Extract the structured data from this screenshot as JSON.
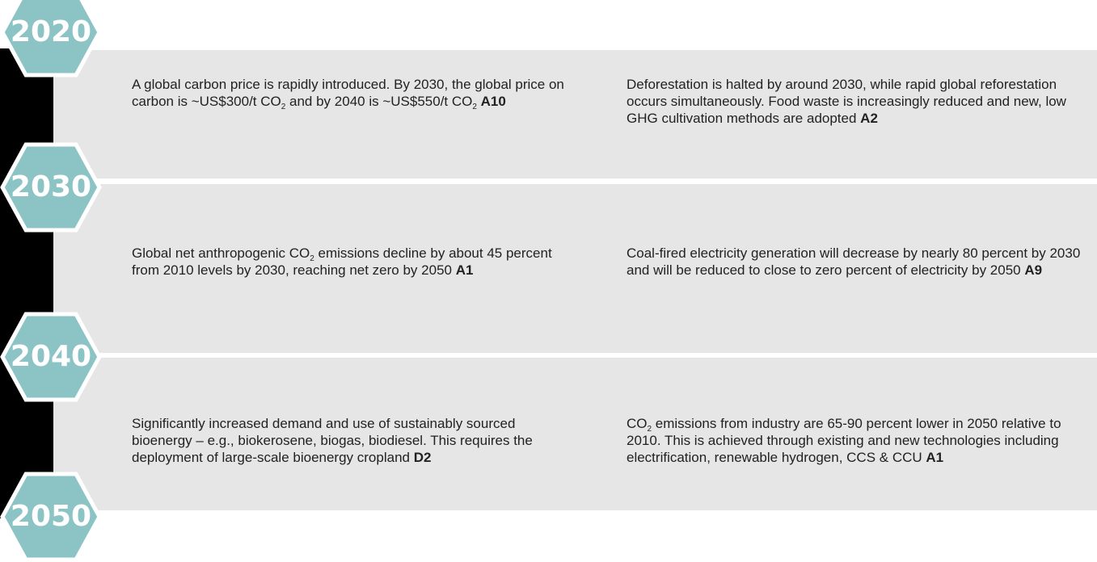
{
  "years": [
    "2020",
    "2030",
    "2040",
    "2050"
  ],
  "rows": [
    [
      {
        "parts": [
          "A global carbon price is rapidly introduced. By 2030, the global price on carbon is ~US$300/t CO",
          "2",
          " and by 2040 is ~US$550/t CO",
          "2",
          " "
        ],
        "code": "A10"
      },
      {
        "parts": [
          "Deforestation is halted by around 2030, while rapid global reforestation occurs simultaneously. Food waste is increasingly reduced and new, low GHG cultivation methods are adopted "
        ],
        "code": "A2"
      }
    ],
    [
      {
        "parts": [
          "Global net anthropogenic CO",
          "2",
          " emissions decline by about 45 percent from 2010 levels by 2030, reaching net zero by 2050 "
        ],
        "code": "A1"
      },
      {
        "parts": [
          "Coal-fired electricity generation will decrease by nearly 80 percent by 2030 and will be reduced to close to zero percent of electricity by 2050 "
        ],
        "code": "A9"
      }
    ],
    [
      {
        "parts": [
          "Significantly increased demand and use of sustainably sourced bioenergy – e.g., biokerosene, biogas, biodiesel. This requires the deployment of large-scale bioenergy cropland "
        ],
        "code": "D2"
      },
      {
        "parts": [
          "",
          "",
          "CO",
          "2",
          " emissions from industry are 65-90 percent lower in 2050 relative to 2010. This is achieved through existing and new technologies including electrification, renewable hydrogen, CCS & CCU "
        ],
        "code": "A1"
      }
    ]
  ]
}
